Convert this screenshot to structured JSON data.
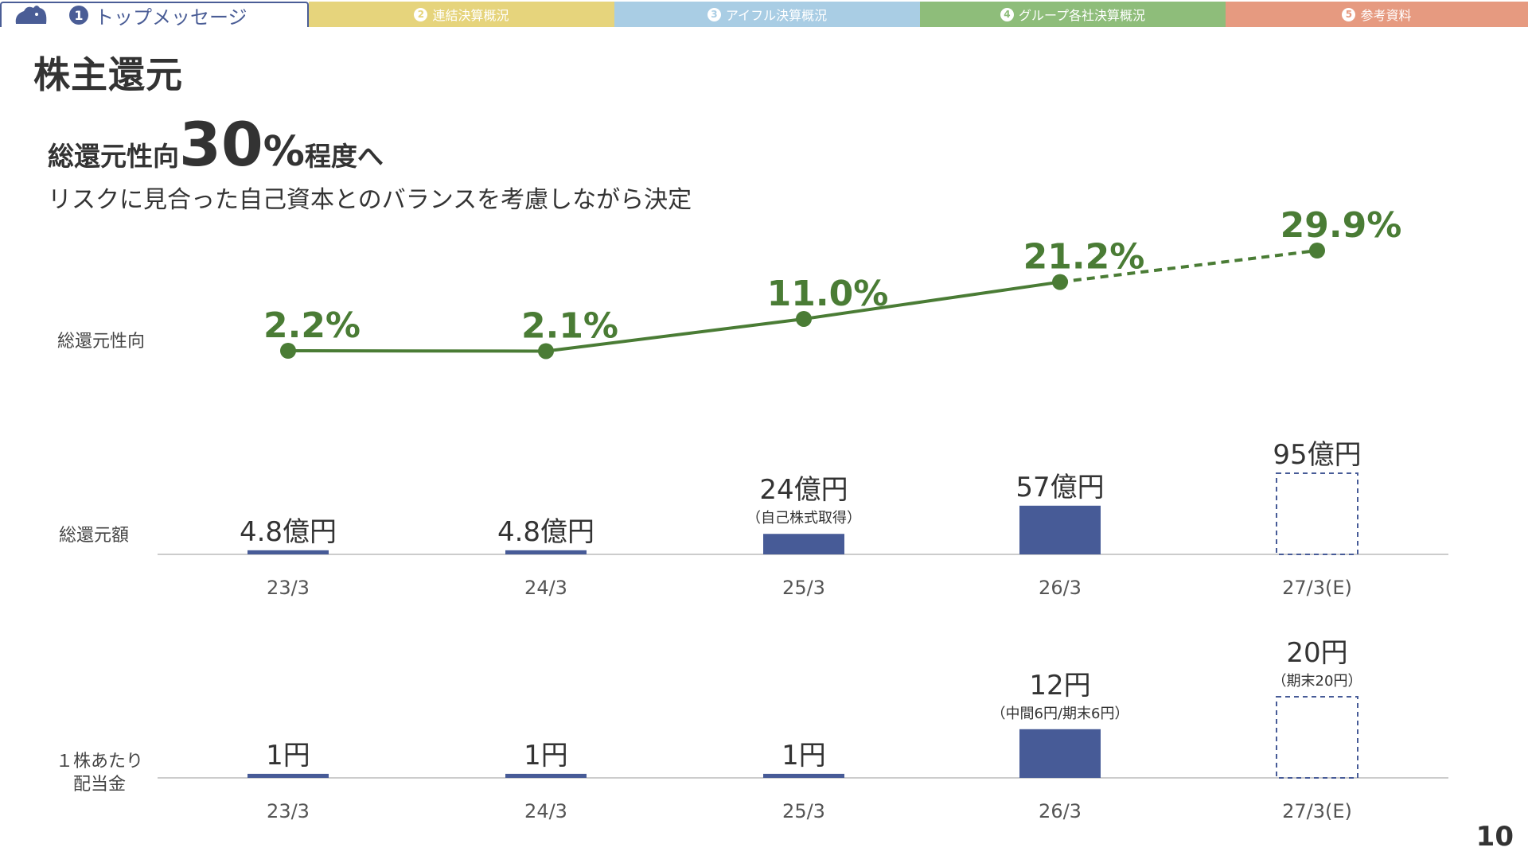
{
  "tabs": [
    {
      "num": "1",
      "label": "トップメッセージ",
      "color": "#ffffff",
      "active": true
    },
    {
      "num": "2",
      "label": "連結決算概況",
      "color": "#e6d47c"
    },
    {
      "num": "3",
      "label": "アイフル決算概況",
      "color": "#a9cde4"
    },
    {
      "num": "4",
      "label": "グループ各社決算概況",
      "color": "#8ebd7a"
    },
    {
      "num": "5",
      "label": "参考資料",
      "color": "#e69a80"
    }
  ],
  "page_title": "株主還元",
  "headline": {
    "prefix": "総還元性向",
    "big": "30",
    "suffix_big": "%",
    "suffix": "程度へ"
  },
  "subline": "リスクに見合った自己資本とのバランスを考慮しながら決定",
  "row_labels": {
    "payout": "総還元性向",
    "total": "総還元額",
    "dps_line1": "１株あたり",
    "dps_line2": "配当金"
  },
  "page_number": "10",
  "colors": {
    "line": "#4a7c35",
    "bar": "#475b97",
    "axis": "#cccccc"
  },
  "chart_data": [
    {
      "type": "line",
      "title": "総還元性向",
      "categories": [
        "23/3",
        "24/3",
        "25/3",
        "26/3",
        "27/3(E)"
      ],
      "values": [
        2.2,
        2.1,
        11.0,
        21.2,
        29.9
      ],
      "labels": [
        "2.2%",
        "2.1%",
        "11.0%",
        "21.2%",
        "29.9%"
      ],
      "forecast_from_index": 3
    },
    {
      "type": "bar",
      "title": "総還元額",
      "categories": [
        "23/3",
        "24/3",
        "25/3",
        "26/3",
        "27/3(E)"
      ],
      "values": [
        4.8,
        4.8,
        24,
        57,
        95
      ],
      "labels": [
        "4.8億円",
        "4.8億円",
        "24億円",
        "57億円",
        "95億円"
      ],
      "notes": [
        "",
        "",
        "（自己株式取得）",
        "",
        ""
      ],
      "forecast": [
        false,
        false,
        false,
        false,
        true
      ]
    },
    {
      "type": "bar",
      "title": "１株あたり配当金",
      "categories": [
        "23/3",
        "24/3",
        "25/3",
        "26/3",
        "27/3(E)"
      ],
      "values": [
        1,
        1,
        1,
        12,
        20
      ],
      "labels": [
        "1円",
        "1円",
        "1円",
        "12円",
        "20円"
      ],
      "notes": [
        "",
        "",
        "",
        "（中間6円/期末6円）",
        "（期末20円）"
      ],
      "forecast": [
        false,
        false,
        false,
        false,
        true
      ]
    }
  ]
}
